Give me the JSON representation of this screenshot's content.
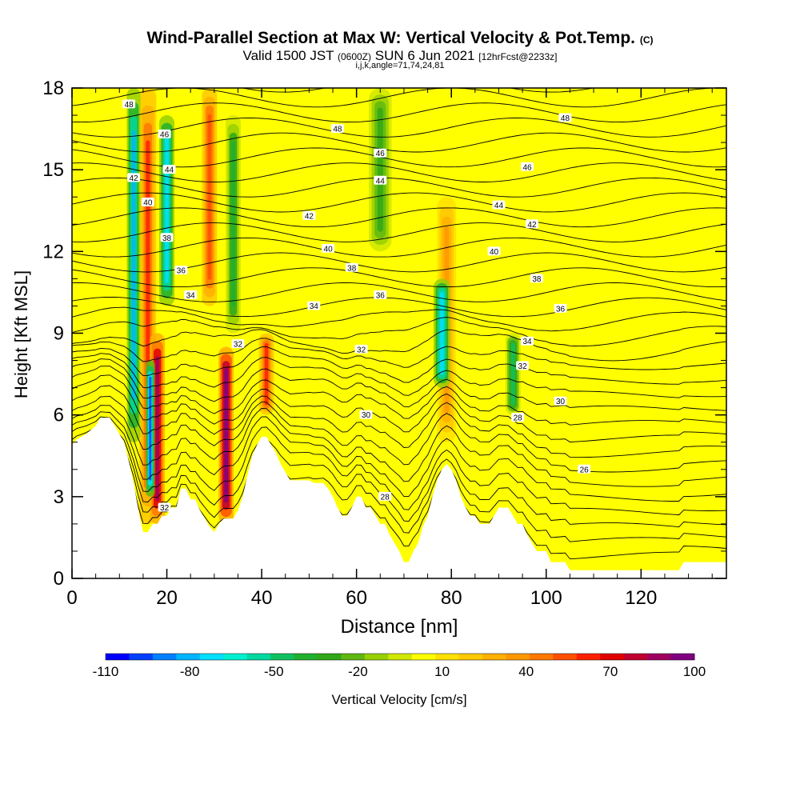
{
  "title": {
    "main": "Wind-Parallel Section at Max W: Vertical Velocity & Pot.Temp.",
    "main_tag": "(C)",
    "valid_prefix": "Valid 1500 JST",
    "valid_zulu": "(0600Z)",
    "valid_date": "SUN 6 Jun 2021",
    "valid_forecast": "[12hrFcst@2233z]",
    "grid_info": "i,j,k,angle=71,74,24,81"
  },
  "chart_data": {
    "type": "heatmap",
    "xlabel": "Distance [nm]",
    "ylabel": "Height [Kft MSL]",
    "xlim": [
      0,
      138
    ],
    "ylim": [
      0,
      18
    ],
    "x_ticks": [
      0,
      20,
      40,
      60,
      80,
      100,
      120
    ],
    "y_ticks": [
      0,
      3,
      6,
      9,
      12,
      15,
      18
    ],
    "colorbar": {
      "label": "Vertical Velocity [cm/s]",
      "tick_labels": [
        "-110",
        "-80",
        "-50",
        "-20",
        "10",
        "40",
        "70",
        "100"
      ],
      "tick_values": [
        -110,
        -80,
        -50,
        -20,
        10,
        40,
        70,
        100
      ],
      "colors": [
        "#0000ff",
        "#0040ff",
        "#0080ff",
        "#00b4ff",
        "#00e0ff",
        "#00f0d0",
        "#00d8a0",
        "#10c060",
        "#20b030",
        "#30a818",
        "#60b810",
        "#98d000",
        "#d0e800",
        "#ffff00",
        "#ffe000",
        "#ffc800",
        "#ffb000",
        "#ff9800",
        "#ff7800",
        "#ff5000",
        "#ff2000",
        "#e00000",
        "#c00030",
        "#a00060",
        "#800080"
      ]
    },
    "background_value_cm_s": 5,
    "updraft_bands_cm_s": [
      {
        "x": 16,
        "width": 2.2,
        "y0": 2,
        "y1": 18,
        "value": 60
      },
      {
        "x": 18,
        "width": 2.0,
        "y0": 2,
        "y1": 9,
        "value": 90
      },
      {
        "x": 29,
        "width": 2.0,
        "y0": 10,
        "y1": 18,
        "value": 55
      },
      {
        "x": 32.5,
        "width": 2.0,
        "y0": 2,
        "y1": 8.5,
        "value": 100
      },
      {
        "x": 41,
        "width": 2.0,
        "y0": 6,
        "y1": 9,
        "value": 60
      },
      {
        "x": 79,
        "width": 2.5,
        "y0": 5,
        "y1": 14,
        "value": 40
      }
    ],
    "downdraft_bands_cm_s": [
      {
        "x": 13,
        "width": 1.8,
        "y0": 5,
        "y1": 18,
        "value": -80
      },
      {
        "x": 16.5,
        "width": 1.2,
        "y0": 3,
        "y1": 8,
        "value": -100
      },
      {
        "x": 20,
        "width": 2.0,
        "y0": 10,
        "y1": 17,
        "value": -75
      },
      {
        "x": 34,
        "width": 2.0,
        "y0": 9,
        "y1": 17,
        "value": -40
      },
      {
        "x": 78,
        "width": 2.2,
        "y0": 7,
        "y1": 11,
        "value": -75
      },
      {
        "x": 93,
        "width": 2.0,
        "y0": 6,
        "y1": 9,
        "value": -45
      },
      {
        "x": 65,
        "width": 3.0,
        "y0": 12,
        "y1": 18,
        "value": -30
      }
    ],
    "isentrope_labels": [
      {
        "x": 12,
        "y": 17.4,
        "text": "48"
      },
      {
        "x": 56,
        "y": 16.5,
        "text": "48"
      },
      {
        "x": 104,
        "y": 16.9,
        "text": "48"
      },
      {
        "x": 19.5,
        "y": 16.3,
        "text": "46"
      },
      {
        "x": 65,
        "y": 15.6,
        "text": "46"
      },
      {
        "x": 96,
        "y": 15.1,
        "text": "46"
      },
      {
        "x": 20.5,
        "y": 15.0,
        "text": "44"
      },
      {
        "x": 65,
        "y": 14.6,
        "text": "44"
      },
      {
        "x": 90,
        "y": 13.7,
        "text": "44"
      },
      {
        "x": 13,
        "y": 14.7,
        "text": "42"
      },
      {
        "x": 50,
        "y": 13.3,
        "text": "42"
      },
      {
        "x": 97,
        "y": 13.0,
        "text": "42"
      },
      {
        "x": 16,
        "y": 13.8,
        "text": "40"
      },
      {
        "x": 54,
        "y": 12.1,
        "text": "40"
      },
      {
        "x": 89,
        "y": 12.0,
        "text": "40"
      },
      {
        "x": 20,
        "y": 12.5,
        "text": "38"
      },
      {
        "x": 59,
        "y": 11.4,
        "text": "38"
      },
      {
        "x": 98,
        "y": 11.0,
        "text": "38"
      },
      {
        "x": 23,
        "y": 11.3,
        "text": "36"
      },
      {
        "x": 65,
        "y": 10.4,
        "text": "36"
      },
      {
        "x": 103,
        "y": 9.9,
        "text": "36"
      },
      {
        "x": 25,
        "y": 10.4,
        "text": "34"
      },
      {
        "x": 51,
        "y": 10.0,
        "text": "34"
      },
      {
        "x": 96,
        "y": 8.7,
        "text": "34"
      },
      {
        "x": 35,
        "y": 8.6,
        "text": "32"
      },
      {
        "x": 61,
        "y": 8.4,
        "text": "32"
      },
      {
        "x": 95,
        "y": 7.8,
        "text": "32"
      },
      {
        "x": 62,
        "y": 6.0,
        "text": "30"
      },
      {
        "x": 103,
        "y": 6.5,
        "text": "30"
      },
      {
        "x": 94,
        "y": 5.9,
        "text": "28"
      },
      {
        "x": 66,
        "y": 3.0,
        "text": "28"
      },
      {
        "x": 108,
        "y": 4.0,
        "text": "26"
      },
      {
        "x": 19.5,
        "y": 2.6,
        "text": "32"
      }
    ],
    "terrain": [
      [
        0,
        4.9
      ],
      [
        1,
        5.1
      ],
      [
        3,
        5.3
      ],
      [
        5,
        5.6
      ],
      [
        6,
        5.9
      ],
      [
        8,
        5.9
      ],
      [
        9,
        5.6
      ],
      [
        10,
        5.3
      ],
      [
        11,
        5.0
      ],
      [
        12,
        4.3
      ],
      [
        13,
        3.5
      ],
      [
        14,
        2.5
      ],
      [
        15,
        1.7
      ],
      [
        16,
        1.7
      ],
      [
        17,
        2.0
      ],
      [
        18,
        2.0
      ],
      [
        19,
        2.3
      ],
      [
        20,
        2.3
      ],
      [
        21,
        2.6
      ],
      [
        22,
        2.6
      ],
      [
        23,
        3.3
      ],
      [
        24,
        3.3
      ],
      [
        25,
        2.9
      ],
      [
        26,
        2.9
      ],
      [
        27,
        2.5
      ],
      [
        28,
        2.2
      ],
      [
        29,
        1.9
      ],
      [
        30,
        1.7
      ],
      [
        31,
        2.0
      ],
      [
        32,
        2.2
      ],
      [
        33,
        2.2
      ],
      [
        34,
        2.2
      ],
      [
        35,
        2.5
      ],
      [
        36,
        3.0
      ],
      [
        37,
        3.8
      ],
      [
        38,
        4.5
      ],
      [
        39,
        4.9
      ],
      [
        40,
        5.2
      ],
      [
        41,
        5.2
      ],
      [
        42,
        4.9
      ],
      [
        43,
        4.6
      ],
      [
        44,
        4.2
      ],
      [
        45,
        3.9
      ],
      [
        46,
        3.6
      ],
      [
        47,
        3.6
      ],
      [
        50,
        3.6
      ],
      [
        51,
        3.5
      ],
      [
        53,
        3.5
      ],
      [
        54,
        3.3
      ],
      [
        55,
        3.0
      ],
      [
        56,
        2.6
      ],
      [
        57,
        2.3
      ],
      [
        58,
        2.3
      ],
      [
        59,
        2.6
      ],
      [
        60,
        3.0
      ],
      [
        61,
        3.0
      ],
      [
        62,
        2.6
      ],
      [
        63,
        2.6
      ],
      [
        64,
        2.3
      ],
      [
        65,
        2.0
      ],
      [
        66,
        2.0
      ],
      [
        67,
        1.6
      ],
      [
        68,
        1.3
      ],
      [
        69,
        1.0
      ],
      [
        70,
        0.6
      ],
      [
        71,
        0.6
      ],
      [
        72,
        1.0
      ],
      [
        73,
        1.3
      ],
      [
        74,
        1.9
      ],
      [
        75,
        2.3
      ],
      [
        76,
        3.0
      ],
      [
        77,
        3.6
      ],
      [
        78,
        4.0
      ],
      [
        79,
        4.2
      ],
      [
        80,
        4.0
      ],
      [
        81,
        3.6
      ],
      [
        82,
        3.0
      ],
      [
        83,
        2.6
      ],
      [
        84,
        2.3
      ],
      [
        85,
        2.3
      ],
      [
        86,
        2.0
      ],
      [
        88,
        2.0
      ],
      [
        89,
        2.3
      ],
      [
        90,
        2.6
      ],
      [
        91,
        2.6
      ],
      [
        92,
        2.6
      ],
      [
        93,
        2.3
      ],
      [
        94,
        2.0
      ],
      [
        95,
        2.0
      ],
      [
        96,
        1.6
      ],
      [
        97,
        1.3
      ],
      [
        98,
        1.0
      ],
      [
        100,
        1.0
      ],
      [
        101,
        0.6
      ],
      [
        102,
        0.6
      ],
      [
        104,
        0.6
      ],
      [
        105,
        0.3
      ],
      [
        107,
        0.3
      ],
      [
        108,
        0.3
      ],
      [
        120,
        0.3
      ],
      [
        128,
        0.3
      ],
      [
        129,
        0.6
      ],
      [
        131,
        0.6
      ],
      [
        138,
        0.6
      ]
    ]
  }
}
